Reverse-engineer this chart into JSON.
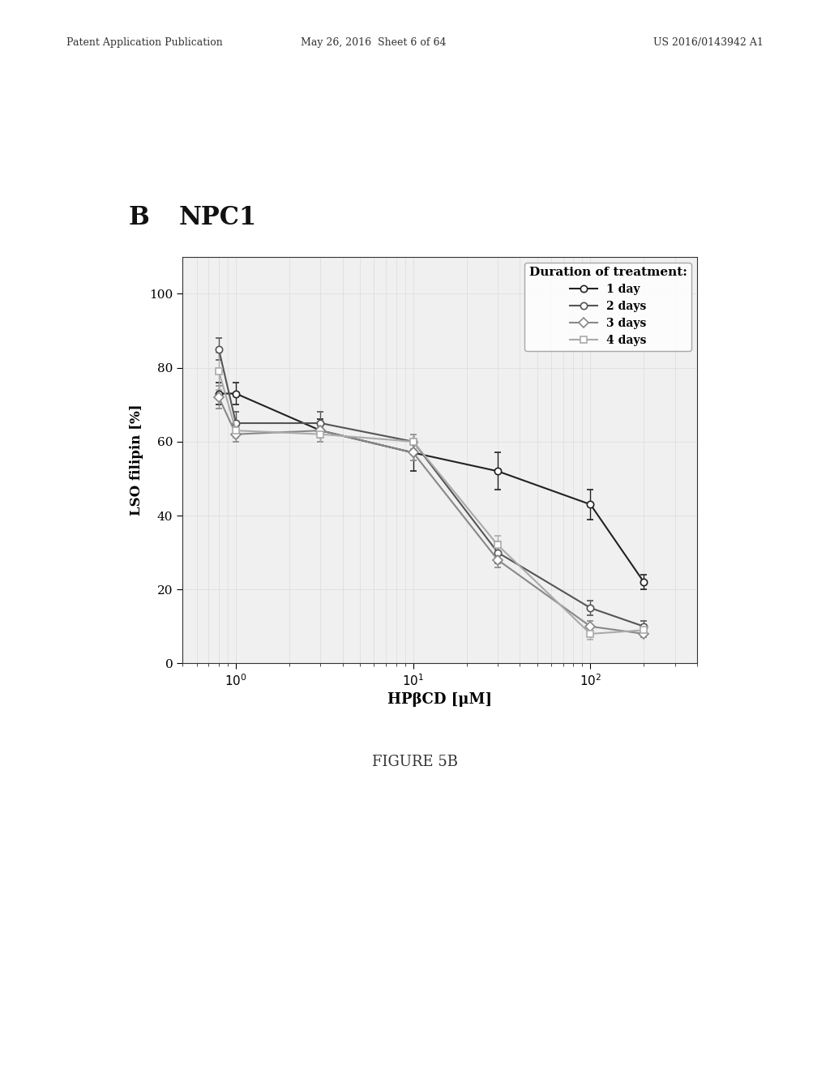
{
  "title_label": "B",
  "title_text": "NPC1",
  "xlabel": "HPβCD [μM]",
  "ylabel": "LSO filipin [%]",
  "legend_title": "Duration of treatment:",
  "legend_entries": [
    "1 day",
    "2 days",
    "3 days",
    "4 days"
  ],
  "ylim": [
    0,
    110
  ],
  "xlim_log": [
    0.5,
    400
  ],
  "series_keys": [
    "1day",
    "2days",
    "3days",
    "4days"
  ],
  "series": {
    "1day": {
      "x": [
        0.8,
        1.0,
        3.0,
        10.0,
        30.0,
        100.0,
        200.0
      ],
      "y": [
        73.0,
        73.0,
        63.0,
        57.0,
        52.0,
        43.0,
        22.0
      ],
      "yerr": [
        3.0,
        3.0,
        3.0,
        5.0,
        5.0,
        4.0,
        2.0
      ],
      "color": "#222222",
      "marker": "o",
      "linestyle": "-",
      "linewidth": 1.5
    },
    "2days": {
      "x": [
        0.8,
        1.0,
        3.0,
        10.0,
        30.0,
        100.0,
        200.0
      ],
      "y": [
        85.0,
        65.0,
        65.0,
        60.0,
        30.0,
        15.0,
        10.0
      ],
      "yerr": [
        3.0,
        3.0,
        3.0,
        2.0,
        3.0,
        2.0,
        1.5
      ],
      "color": "#555555",
      "marker": "o",
      "linestyle": "-",
      "linewidth": 1.5
    },
    "3days": {
      "x": [
        0.8,
        1.0,
        3.0,
        10.0,
        30.0,
        100.0,
        200.0
      ],
      "y": [
        72.0,
        62.0,
        63.0,
        57.0,
        28.0,
        10.0,
        8.0
      ],
      "yerr": [
        3.0,
        2.0,
        2.0,
        2.0,
        2.0,
        1.5,
        1.0
      ],
      "color": "#888888",
      "marker": "D",
      "linestyle": "-",
      "linewidth": 1.5
    },
    "4days": {
      "x": [
        0.8,
        1.0,
        3.0,
        10.0,
        30.0,
        100.0,
        200.0
      ],
      "y": [
        79.0,
        63.0,
        62.0,
        60.0,
        32.0,
        8.0,
        9.0
      ],
      "yerr": [
        5.0,
        2.0,
        2.0,
        2.0,
        2.5,
        1.5,
        1.0
      ],
      "color": "#aaaaaa",
      "marker": "s",
      "linestyle": "-",
      "linewidth": 1.5
    }
  },
  "figure_caption": "FIGURE 5B",
  "patent_header_left": "Patent Application Publication",
  "patent_header_mid": "May 26, 2016  Sheet 6 of 64",
  "patent_header_right": "US 2016/0143942 A1",
  "bg_color": "#ffffff",
  "plot_bg_color": "#f0f0f0"
}
